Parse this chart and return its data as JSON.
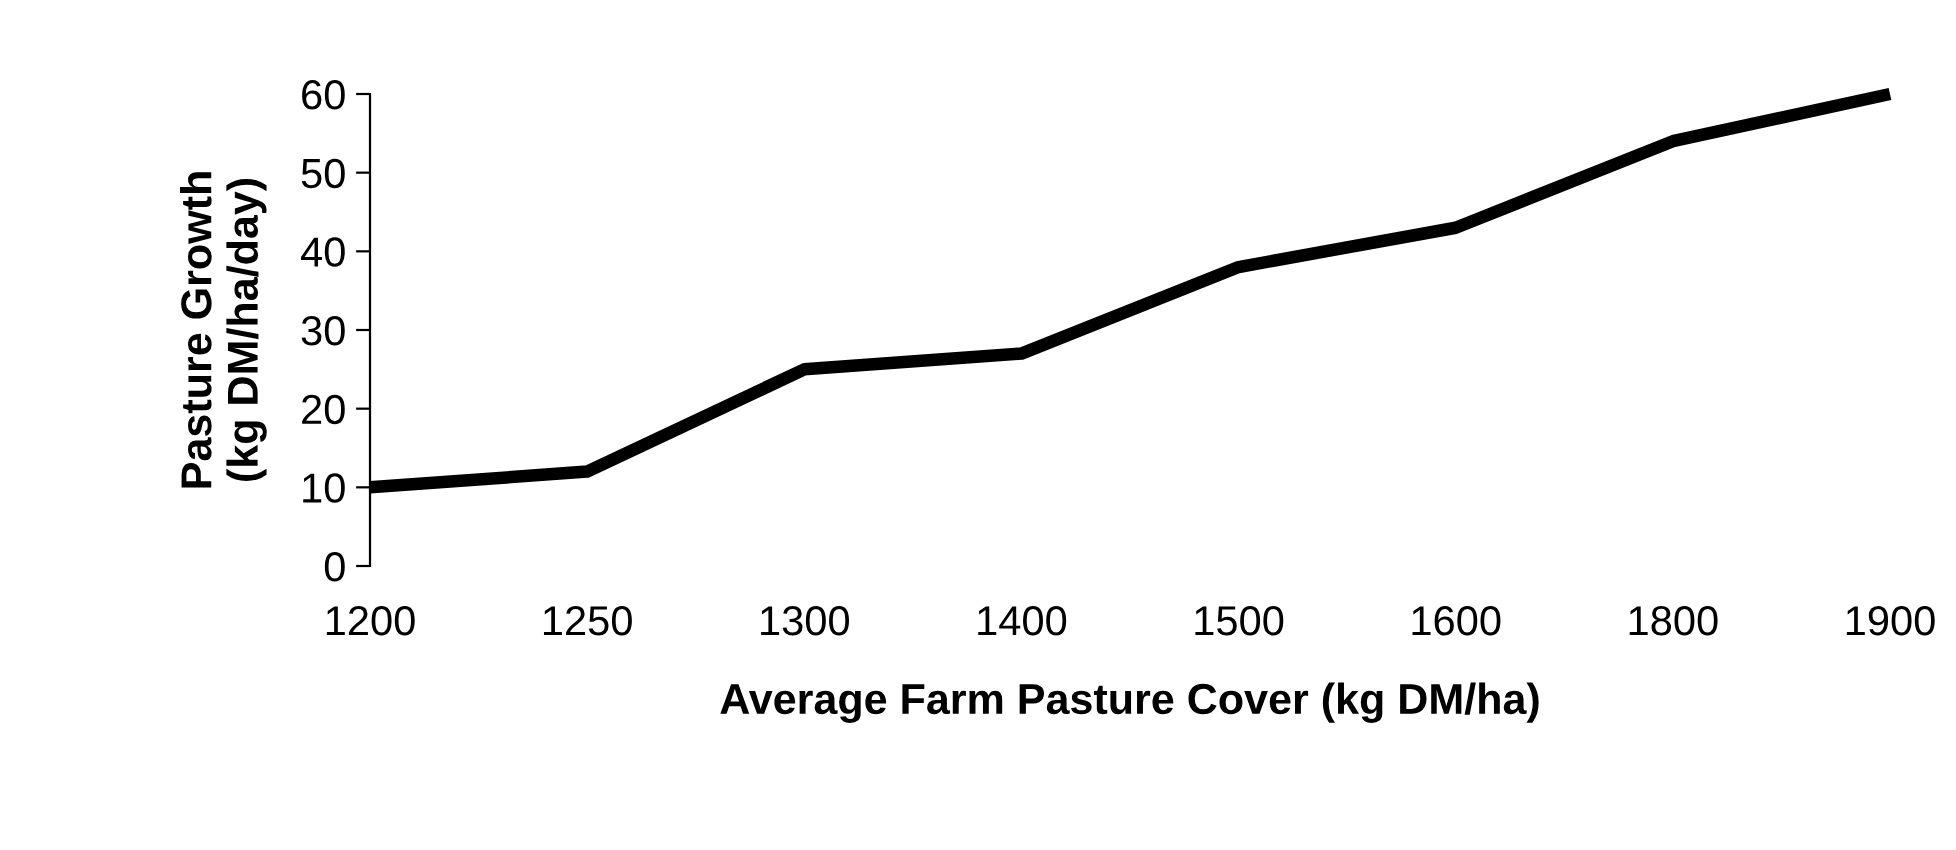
{
  "chart_data": {
    "type": "line",
    "xlabel": "Average Farm Pasture Cover (kg DM/ha)",
    "ylabel": "Pasture Growth\n(kg DM/ha/day)",
    "categories": [
      "1200",
      "1250",
      "1300",
      "1400",
      "1500",
      "1600",
      "1800",
      "1900"
    ],
    "series": [
      {
        "color": "#000000",
        "values": [
          10,
          12,
          25,
          27,
          38,
          43,
          54,
          60
        ]
      }
    ],
    "ylim": [
      0,
      60
    ],
    "yticks": [
      0,
      10,
      20,
      30,
      40,
      50,
      60
    ],
    "grid": false,
    "legend": false,
    "marker": "none",
    "line_style": "solid"
  }
}
